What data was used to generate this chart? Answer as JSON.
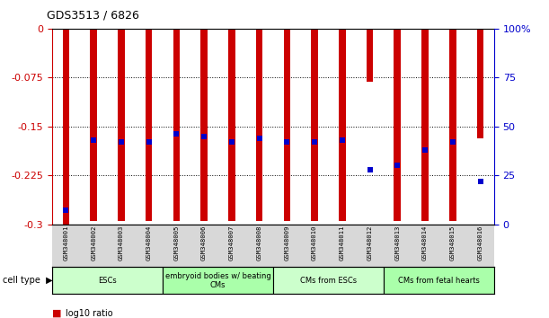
{
  "title": "GDS3513 / 6826",
  "samples": [
    "GSM348001",
    "GSM348002",
    "GSM348003",
    "GSM348004",
    "GSM348005",
    "GSM348006",
    "GSM348007",
    "GSM348008",
    "GSM348009",
    "GSM348010",
    "GSM348011",
    "GSM348012",
    "GSM348013",
    "GSM348014",
    "GSM348015",
    "GSM348016"
  ],
  "log10_ratio": [
    -0.3,
    -0.295,
    -0.295,
    -0.295,
    -0.295,
    -0.295,
    -0.295,
    -0.295,
    -0.295,
    -0.295,
    -0.295,
    -0.082,
    -0.295,
    -0.295,
    -0.295,
    -0.168
  ],
  "percentile_rank": [
    7,
    43,
    42,
    42,
    46,
    45,
    42,
    44,
    42,
    42,
    43,
    28,
    30,
    38,
    42,
    22
  ],
  "ylim_left": [
    -0.3,
    0
  ],
  "ylim_right": [
    0,
    100
  ],
  "yticks_left": [
    0,
    -0.075,
    -0.15,
    -0.225,
    -0.3
  ],
  "yticks_left_labels": [
    "0",
    "-0.075",
    "-0.15",
    "-0.225",
    "-0.3"
  ],
  "yticks_right": [
    100,
    75,
    50,
    25,
    0
  ],
  "yticks_right_labels": [
    "100%",
    "75",
    "50",
    "25",
    "0"
  ],
  "bar_color": "#CC0000",
  "dot_color": "#0000CC",
  "cell_types": [
    {
      "label": "ESCs",
      "start": 0,
      "end": 4,
      "color": "#CCFFCC"
    },
    {
      "label": "embryoid bodies w/ beating\nCMs",
      "start": 4,
      "end": 8,
      "color": "#AAFFAA"
    },
    {
      "label": "CMs from ESCs",
      "start": 8,
      "end": 12,
      "color": "#CCFFCC"
    },
    {
      "label": "CMs from fetal hearts",
      "start": 12,
      "end": 16,
      "color": "#AAFFAA"
    }
  ],
  "tick_color_left": "#CC0000",
  "tick_color_right": "#0000CC",
  "bar_width": 0.25,
  "dot_size": 4,
  "figwidth": 6.11,
  "figheight": 3.54
}
